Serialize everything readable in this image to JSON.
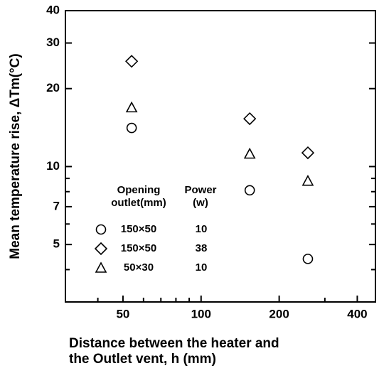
{
  "chart_data": {
    "type": "scatter",
    "xlabel": [
      "Distance between the heater and",
      "the Outlet vent,  h (mm)"
    ],
    "ylabel": "Mean temperature rise,  ΔTm(°C)",
    "xlog": true,
    "ylog": true,
    "xlim": [
      30,
      470
    ],
    "ylim": [
      3,
      40
    ],
    "xticks": [
      50,
      100,
      200,
      400
    ],
    "xminor": [
      40,
      60,
      70,
      80,
      90,
      300
    ],
    "yticks": [
      5,
      7,
      10,
      20,
      30,
      40
    ],
    "yminor": [
      4,
      6,
      8,
      9
    ],
    "legend_headers": [
      [
        "Opening",
        "outlet(mm)"
      ],
      [
        "Power",
        "(w)"
      ]
    ],
    "series": [
      {
        "name": "150×50",
        "power": "10",
        "marker": "circle",
        "color": "#000000",
        "x": [
          54,
          154,
          258
        ],
        "values": [
          14.1,
          8.1,
          4.4
        ]
      },
      {
        "name": "150×50",
        "power": "38",
        "marker": "diamond",
        "color": "#000000",
        "x": [
          54,
          154,
          258
        ],
        "values": [
          25.5,
          15.3,
          11.3
        ]
      },
      {
        "name": "50×30",
        "power": "10",
        "marker": "triangle",
        "color": "#000000",
        "x": [
          54,
          154,
          258
        ],
        "values": [
          16.9,
          11.2,
          8.8
        ]
      }
    ]
  }
}
